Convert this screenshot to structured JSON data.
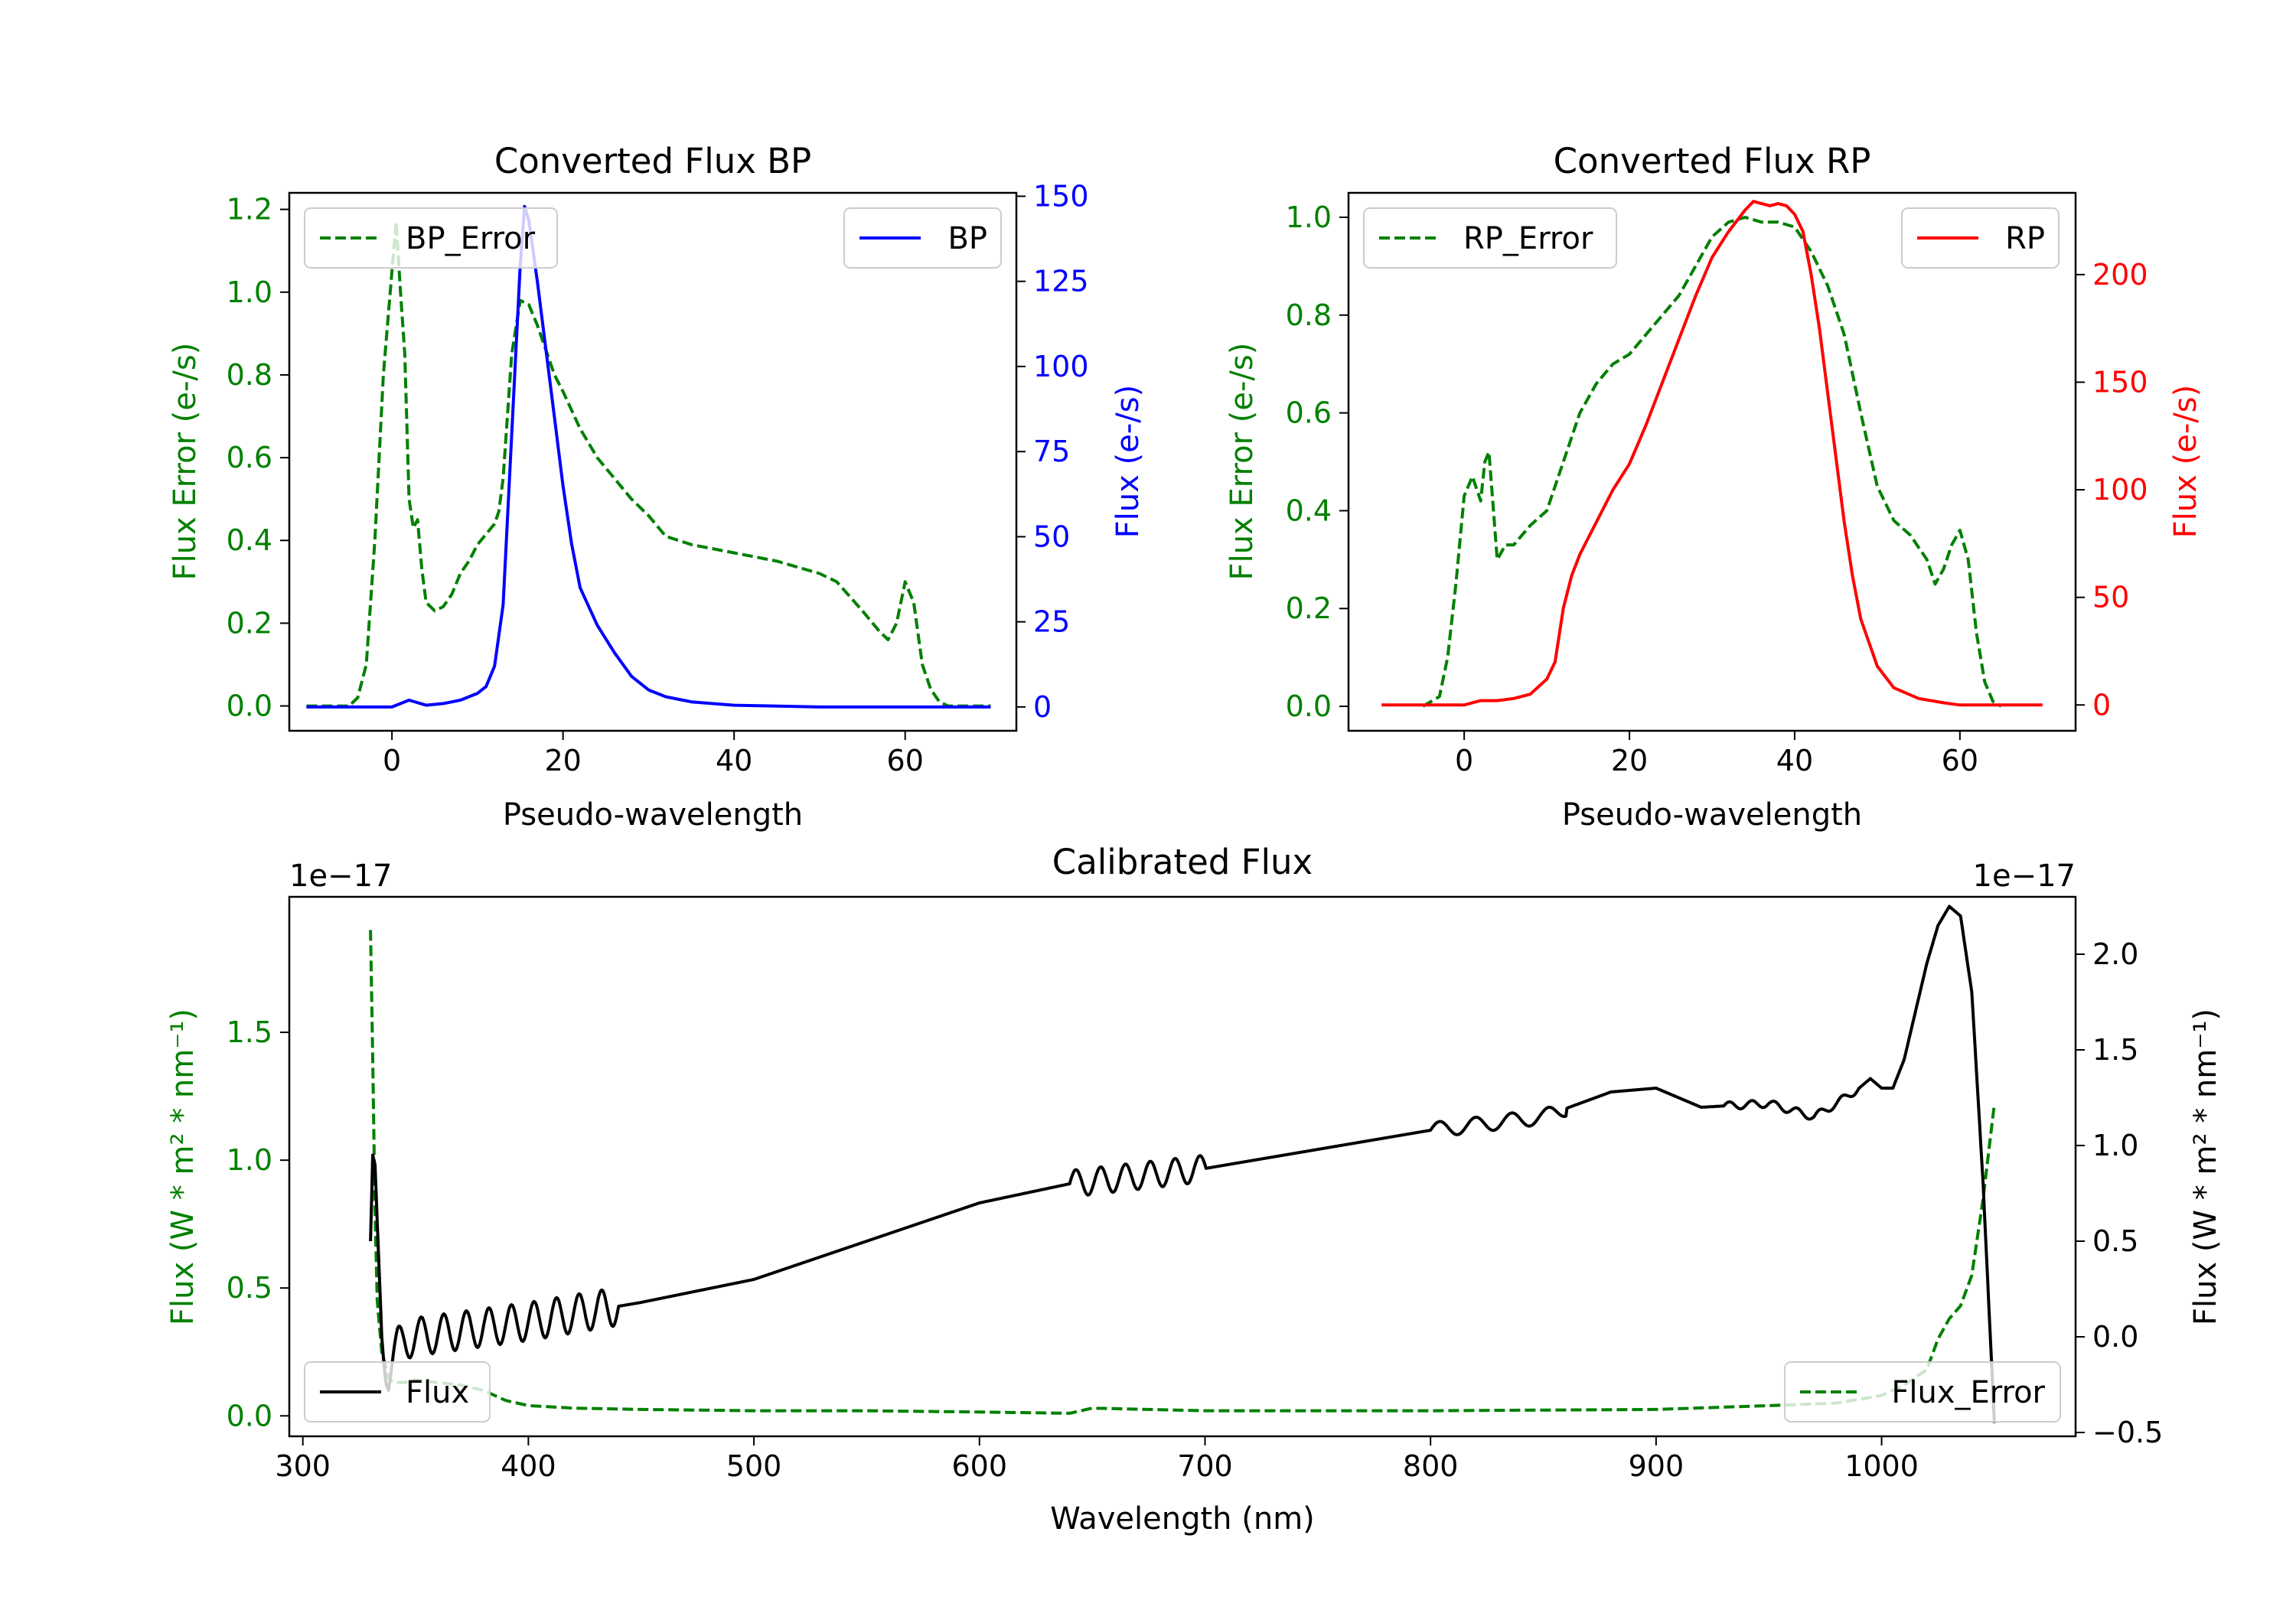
{
  "colors": {
    "bp": "#0000ff",
    "rp": "#ff0000",
    "error": "#008000",
    "flux": "#000000",
    "axis": "#000000"
  },
  "chart_data": [
    {
      "type": "line",
      "title": "Converted Flux BP",
      "xlabel": "Pseudo-wavelength",
      "xlim": [
        -12,
        73
      ],
      "xticks": [
        0,
        20,
        40,
        60
      ],
      "y_left": {
        "label": "Flux Error (e-/s)",
        "color": "#008000",
        "lim": [
          -0.06,
          1.24
        ],
        "ticks": [
          "0.0",
          "0.2",
          "0.4",
          "0.6",
          "0.8",
          "1.0",
          "1.2"
        ]
      },
      "y_right": {
        "label": "Flux (e-/s)",
        "color": "#0000ff",
        "lim": [
          -7,
          151
        ],
        "ticks": [
          "0",
          "25",
          "50",
          "75",
          "100",
          "125",
          "150"
        ]
      },
      "legend_left": "BP_Error",
      "legend_right": "BP",
      "series": [
        {
          "name": "BP_Error",
          "axis": "left",
          "style": "dashed",
          "color": "#008000",
          "x": [
            -10,
            -5,
            -4,
            -3,
            -2,
            -1,
            0,
            0.5,
            1,
            1.5,
            2,
            2.5,
            3,
            3.5,
            4,
            5,
            6,
            7,
            8,
            9,
            10,
            12,
            12.5,
            13,
            14,
            15,
            16,
            17,
            18,
            19,
            20,
            22,
            24,
            26,
            28,
            30,
            32,
            35,
            40,
            45,
            50,
            52,
            55,
            57,
            58,
            59,
            60,
            61,
            62,
            63,
            64,
            65,
            70
          ],
          "y": [
            0,
            0,
            0.02,
            0.1,
            0.4,
            0.8,
            1.05,
            1.17,
            1.0,
            0.85,
            0.5,
            0.43,
            0.45,
            0.33,
            0.25,
            0.23,
            0.24,
            0.27,
            0.32,
            0.35,
            0.39,
            0.44,
            0.47,
            0.55,
            0.85,
            0.98,
            0.97,
            0.92,
            0.86,
            0.8,
            0.76,
            0.67,
            0.6,
            0.55,
            0.5,
            0.46,
            0.41,
            0.39,
            0.37,
            0.35,
            0.32,
            0.3,
            0.23,
            0.18,
            0.16,
            0.2,
            0.3,
            0.25,
            0.1,
            0.04,
            0.01,
            0,
            0
          ]
        },
        {
          "name": "BP",
          "axis": "right",
          "style": "solid",
          "color": "#0000ff",
          "x": [
            -10,
            -5,
            0,
            2,
            4,
            6,
            8,
            10,
            11,
            12,
            13,
            14,
            15,
            15.5,
            16,
            17,
            18,
            19,
            20,
            21,
            22,
            24,
            26,
            28,
            30,
            32,
            35,
            40,
            50,
            60,
            70
          ],
          "y": [
            0,
            0,
            0,
            2,
            0.5,
            1,
            2,
            4,
            6,
            12,
            30,
            80,
            130,
            147,
            143,
            125,
            105,
            85,
            65,
            48,
            35,
            24,
            16,
            9,
            5,
            3,
            1.5,
            0.5,
            0,
            0,
            0
          ]
        }
      ]
    },
    {
      "type": "line",
      "title": "Converted Flux RP",
      "xlabel": "Pseudo-wavelength",
      "xlim": [
        -14,
        74
      ],
      "xticks": [
        0,
        20,
        40,
        60
      ],
      "y_left": {
        "label": "Flux Error (e-/s)",
        "color": "#008000",
        "lim": [
          -0.05,
          1.05
        ],
        "ticks": [
          "0.0",
          "0.2",
          "0.4",
          "0.6",
          "0.8",
          "1.0"
        ]
      },
      "y_right": {
        "label": "Flux (e-/s)",
        "color": "#ff0000",
        "lim": [
          -12,
          238
        ],
        "ticks": [
          "0",
          "50",
          "100",
          "150",
          "200"
        ]
      },
      "legend_left": "RP_Error",
      "legend_right": "RP",
      "series": [
        {
          "name": "RP_Error",
          "axis": "right_unused",
          "style": "dashed",
          "color": "#008000",
          "x": [
            -5,
            -3,
            -2,
            -1,
            0,
            1,
            2,
            2.5,
            3,
            4,
            5,
            6,
            8,
            10,
            12,
            14,
            16,
            18,
            20,
            22,
            24,
            26,
            28,
            30,
            32,
            34,
            36,
            38,
            40,
            42,
            44,
            46,
            48,
            50,
            52,
            54,
            56,
            57,
            58,
            59,
            60,
            61,
            62,
            63,
            64,
            65
          ],
          "y": [
            0,
            0.02,
            0.1,
            0.25,
            0.43,
            0.47,
            0.42,
            0.5,
            0.52,
            0.3,
            0.33,
            0.33,
            0.37,
            0.4,
            0.5,
            0.6,
            0.66,
            0.7,
            0.72,
            0.76,
            0.8,
            0.84,
            0.9,
            0.96,
            0.99,
            1.0,
            0.99,
            0.99,
            0.98,
            0.93,
            0.86,
            0.76,
            0.6,
            0.45,
            0.38,
            0.35,
            0.3,
            0.25,
            0.28,
            0.33,
            0.36,
            0.3,
            0.15,
            0.05,
            0.01,
            0
          ]
        }
      ],
      "series_rp": {
        "name": "RP",
        "style": "solid",
        "color": "#ff0000",
        "x": [
          -10,
          0,
          2,
          4,
          6,
          8,
          10,
          11,
          12,
          13,
          14,
          16,
          18,
          20,
          22,
          24,
          26,
          28,
          30,
          32,
          34,
          35,
          36,
          37,
          38,
          39,
          40,
          41,
          42,
          43,
          44,
          45,
          46,
          47,
          48,
          50,
          52,
          55,
          58,
          60,
          62,
          65,
          70
        ],
        "y": [
          0,
          0,
          2,
          2,
          3,
          5,
          12,
          20,
          45,
          60,
          70,
          85,
          100,
          112,
          130,
          150,
          170,
          190,
          208,
          220,
          230,
          234,
          233,
          232,
          233,
          232,
          228,
          220,
          200,
          175,
          145,
          115,
          85,
          60,
          40,
          18,
          8,
          3,
          1,
          0,
          0,
          0,
          0
        ]
      }
    },
    {
      "type": "line",
      "title": "Calibrated Flux",
      "xlabel": "Wavelength (nm)",
      "xlim": [
        294,
        1086
      ],
      "xticks": [
        300,
        400,
        500,
        600,
        700,
        800,
        900,
        1000
      ],
      "y_left": {
        "label": "Flux (W * m² * nm⁻¹)",
        "color": "#008000",
        "lim": [
          -0.08,
          2.03
        ],
        "ticks": [
          "0.0",
          "0.5",
          "1.0",
          "1.5"
        ],
        "offset": "1e−17"
      },
      "y_right": {
        "label": "Flux (W * m² * nm⁻¹)",
        "color": "#000000",
        "lim": [
          -0.52,
          2.3
        ],
        "ticks": [
          "−0.5",
          "0.0",
          "0.5",
          "1.0",
          "1.5",
          "2.0"
        ],
        "offset": "1e−17"
      },
      "legend_left": "Flux",
      "legend_right": "Flux_Error",
      "series": [
        {
          "name": "Flux_Error",
          "axis": "left",
          "style": "dashed",
          "color": "#008000",
          "x": [
            330,
            331,
            332,
            333,
            335,
            338,
            340,
            345,
            350,
            360,
            370,
            380,
            390,
            400,
            420,
            450,
            500,
            550,
            600,
            640,
            645,
            650,
            700,
            800,
            900,
            950,
            980,
            1000,
            1010,
            1020,
            1025,
            1030,
            1035,
            1040,
            1045,
            1050
          ],
          "y": [
            1.9,
            1.4,
            0.8,
            0.45,
            0.25,
            0.15,
            0.13,
            0.13,
            0.14,
            0.13,
            0.12,
            0.1,
            0.06,
            0.04,
            0.03,
            0.025,
            0.02,
            0.02,
            0.015,
            0.01,
            0.02,
            0.03,
            0.02,
            0.02,
            0.025,
            0.04,
            0.05,
            0.08,
            0.12,
            0.18,
            0.3,
            0.38,
            0.43,
            0.55,
            0.85,
            1.22
          ]
        }
      ],
      "series_flux": {
        "name": "Flux",
        "style": "solid",
        "color": "#000000",
        "x": [
          330,
          331,
          332,
          333,
          334,
          335,
          336,
          337,
          338,
          339,
          340,
          342,
          345,
          350,
          400,
          450,
          500,
          550,
          600,
          640,
          700,
          750,
          800,
          850,
          880,
          900,
          920,
          950,
          970,
          980,
          990,
          995,
          1000,
          1005,
          1010,
          1015,
          1020,
          1025,
          1030,
          1035,
          1040,
          1045,
          1050
        ],
        "y": [
          0.5,
          0.95,
          0.9,
          0.6,
          0.3,
          0.0,
          -0.15,
          -0.25,
          -0.28,
          -0.2,
          -0.1,
          -0.05,
          -0.02,
          0.0,
          0.08,
          0.18,
          0.3,
          0.5,
          0.7,
          0.8,
          0.88,
          0.98,
          1.08,
          1.15,
          1.28,
          1.3,
          1.2,
          1.22,
          1.15,
          1.22,
          1.3,
          1.35,
          1.3,
          1.3,
          1.45,
          1.7,
          1.95,
          2.15,
          2.25,
          2.2,
          1.8,
          0.8,
          -0.45
        ]
      },
      "wiggles": [
        {
          "range": [
            340,
            440
          ],
          "amplitude": 0.1,
          "period": 10
        },
        {
          "range": [
            640,
            700
          ],
          "amplitude": 0.07,
          "period": 11
        },
        {
          "range": [
            800,
            860
          ],
          "amplitude": 0.04,
          "period": 16
        },
        {
          "range": [
            930,
            990
          ],
          "amplitude": 0.02,
          "period": 10
        }
      ]
    }
  ]
}
